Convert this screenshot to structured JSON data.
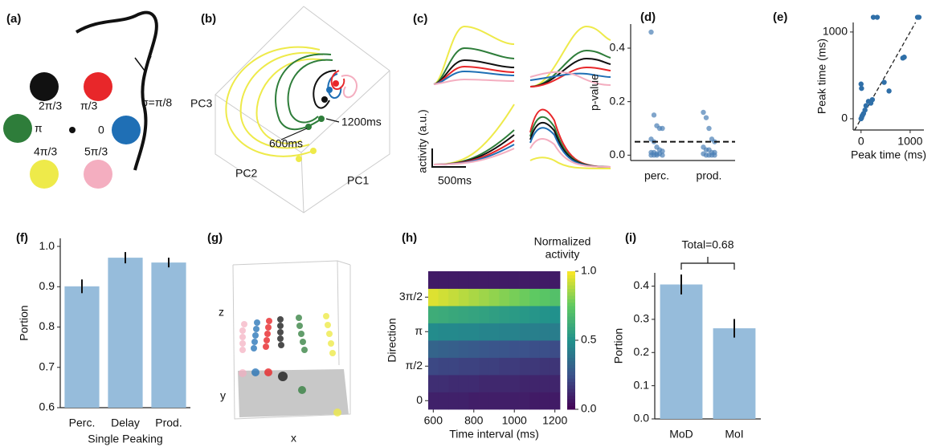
{
  "panel_a": {
    "label": "(a)",
    "directions": [
      "2π/3",
      "π/3",
      "π",
      "0",
      "4π/3",
      "5π/3"
    ],
    "annotation": "σ=π/8"
  },
  "panel_b": {
    "label": "(b)",
    "axes": [
      "PC3",
      "PC2",
      "PC1"
    ],
    "annotations": [
      "600ms",
      "1200ms"
    ]
  },
  "panel_c": {
    "label": "(c)",
    "y_label": "activity (a.u.)",
    "scale_label": "500ms"
  },
  "panel_g": {
    "label": "(g)",
    "axes": [
      "z",
      "y",
      "x"
    ]
  },
  "chart_data": [
    {
      "panel": "(d)",
      "type": "strip",
      "categories": [
        "perc.",
        "prod."
      ],
      "values": [
        [
          0.46,
          0.15,
          0.11,
          0.1,
          0.1,
          0.06,
          0.05,
          0.03,
          0.02,
          0.015,
          0.01,
          0.01,
          0.005,
          0.005,
          0,
          0,
          0,
          0
        ],
        [
          0.16,
          0.14,
          0.1,
          0.06,
          0.05,
          0.03,
          0.02,
          0.02,
          0.01,
          0.01,
          0.005,
          0,
          0,
          0,
          0
        ]
      ],
      "color": "#4a7fb5",
      "ylabel": "p-value",
      "ylim": [
        -0.02,
        0.49
      ],
      "yticks": [
        {
          "value": 0,
          "label": "0.0"
        },
        0.2,
        0.4
      ],
      "threshold": 0.05
    },
    {
      "panel": "(e)",
      "type": "scatter",
      "x": [
        0,
        10,
        250,
        330,
        470,
        570,
        850,
        880,
        1150,
        1180,
        0,
        20,
        50,
        80,
        100,
        150,
        200,
        230,
        10,
        30
      ],
      "y": [
        400,
        350,
        1170,
        1170,
        420,
        320,
        700,
        710,
        1170,
        1170,
        0,
        30,
        60,
        100,
        150,
        200,
        180,
        220,
        10,
        40
      ],
      "color": "#2f6fa8",
      "xlabel": "Peak time (ms)",
      "ylabel": "Peak time (ms)",
      "xlim": [
        -160,
        1280
      ],
      "ylim": [
        -130,
        1110
      ],
      "xticks": [
        0,
        1000
      ],
      "yticks": [
        0,
        1000
      ],
      "identity_line": true
    },
    {
      "panel": "(f)",
      "type": "bar",
      "categories": [
        "Perc.",
        "Delay",
        "Prod."
      ],
      "values": [
        0.901,
        0.972,
        0.96
      ],
      "errors": [
        0.017,
        0.014,
        0.012
      ],
      "color": "#96bcdb",
      "xlabel": "Single Peaking",
      "ylabel": "Portion",
      "ylim": [
        0.6,
        1.02
      ],
      "yticks": [
        0.6,
        0.7,
        0.8,
        0.9,
        {
          "value": 1,
          "label": "1.0"
        }
      ]
    },
    {
      "panel": "(h)",
      "type": "heatmap",
      "x": [
        600,
        650,
        700,
        750,
        800,
        850,
        900,
        950,
        1000,
        1050,
        1100,
        1150,
        1200
      ],
      "y": [
        0,
        0.7854,
        1.5708,
        2.3562,
        3.1416,
        3.927,
        4.7124,
        5.4978
      ],
      "values": [
        [
          0.1,
          0.1,
          0.1,
          0.1,
          0.09,
          0.09,
          0.09,
          0.09,
          0.09,
          0.09,
          0.08,
          0.08,
          0.08
        ],
        [
          0.14,
          0.14,
          0.13,
          0.13,
          0.13,
          0.12,
          0.12,
          0.12,
          0.12,
          0.11,
          0.11,
          0.11,
          0.11
        ],
        [
          0.22,
          0.21,
          0.21,
          0.2,
          0.2,
          0.19,
          0.19,
          0.18,
          0.18,
          0.17,
          0.17,
          0.16,
          0.16
        ],
        [
          0.32,
          0.31,
          0.3,
          0.29,
          0.28,
          0.27,
          0.26,
          0.26,
          0.25,
          0.25,
          0.24,
          0.24,
          0.23
        ],
        [
          0.48,
          0.47,
          0.47,
          0.46,
          0.46,
          0.45,
          0.45,
          0.44,
          0.44,
          0.43,
          0.43,
          0.42,
          0.42
        ],
        [
          0.62,
          0.61,
          0.6,
          0.59,
          0.58,
          0.57,
          0.56,
          0.55,
          0.54,
          0.53,
          0.52,
          0.51,
          0.5
        ],
        [
          0.95,
          0.93,
          0.91,
          0.89,
          0.87,
          0.85,
          0.83,
          0.81,
          0.79,
          0.77,
          0.75,
          0.73,
          0.71
        ],
        [
          0.08,
          0.08,
          0.08,
          0.08,
          0.08,
          0.08,
          0.08,
          0.08,
          0.08,
          0.08,
          0.08,
          0.08,
          0.08
        ]
      ],
      "xlabel": "Time interval (ms)",
      "ylabel": "Direction",
      "xlim": [
        575,
        1225
      ],
      "ylim": [
        -0.3927,
        5.8905
      ],
      "xticks": [
        600,
        800,
        1000,
        1200
      ],
      "yticks": [
        0,
        {
          "value": 1.5708,
          "label": "π/2"
        },
        {
          "value": 3.1416,
          "label": "π"
        },
        {
          "value": 4.7124,
          "label": "3π/2"
        }
      ],
      "colormap": "viridis",
      "clim": [
        0,
        1
      ],
      "cticks": [
        {
          "value": 0,
          "label": "0.0"
        },
        {
          "value": 0.5,
          "label": "0.5"
        },
        {
          "value": 1,
          "label": "1.0"
        }
      ],
      "colorbar_label": [
        "Normalized",
        "activity"
      ]
    },
    {
      "panel": "(i)",
      "type": "bar",
      "categories": [
        "MoD",
        "MoI"
      ],
      "values": [
        0.405,
        0.273
      ],
      "errors": [
        0.03,
        0.028
      ],
      "color": "#96bcdb",
      "ylabel": "Portion",
      "ylim": [
        0,
        0.44
      ],
      "yticks": [
        {
          "value": 0,
          "label": "0.0"
        },
        0.1,
        0.2,
        0.3,
        0.4
      ],
      "annotation": "Total=0.68"
    }
  ]
}
